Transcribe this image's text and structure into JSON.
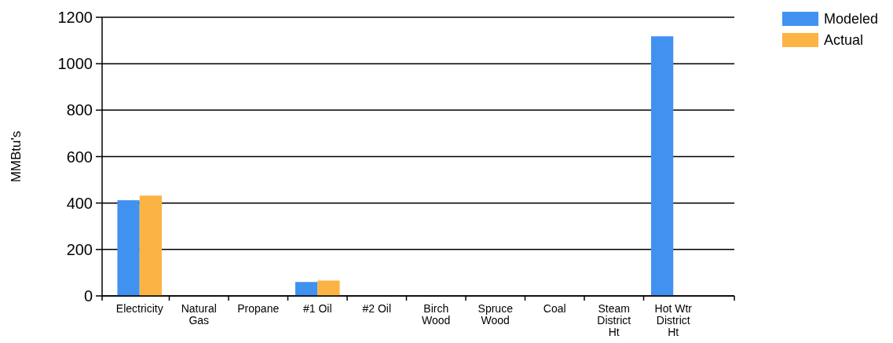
{
  "chart_data": {
    "type": "bar",
    "ylabel": "MMBtu's",
    "categories": [
      "Electricity",
      "Natural Gas",
      "Propane",
      "#1 Oil",
      "#2 Oil",
      "Birch Wood",
      "Spruce Wood",
      "Coal",
      "Steam District Ht",
      "Hot Wtr District Ht"
    ],
    "series": [
      {
        "name": "Modeled",
        "color": "#4192f0",
        "values": [
          412,
          0,
          0,
          60,
          0,
          0,
          0,
          0,
          0,
          1118
        ]
      },
      {
        "name": "Actual",
        "color": "#fbb444",
        "values": [
          432,
          0,
          0,
          66,
          0,
          0,
          0,
          0,
          0,
          0
        ]
      }
    ],
    "ylim": [
      0,
      1200
    ],
    "yticks": [
      0,
      200,
      400,
      600,
      800,
      1000,
      1200
    ],
    "grid": "y",
    "legend": "top right"
  }
}
